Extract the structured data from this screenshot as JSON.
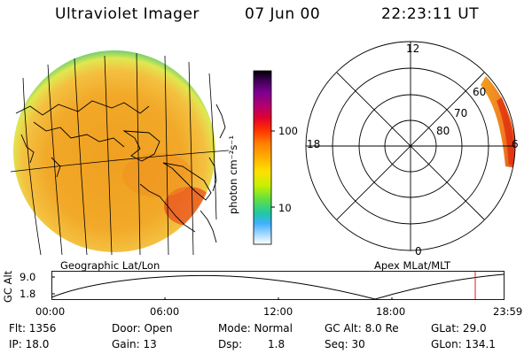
{
  "header": {
    "instrument": "Ultraviolet Imager",
    "date": "07 Jun 00",
    "time": "22:23:11 UT"
  },
  "colorbar": {
    "unit_label": "photon cm⁻²s⁻¹",
    "scale": "log",
    "tick_labels": [
      "100",
      "10"
    ],
    "colors": [
      "#000000",
      "#3a0050",
      "#7a0090",
      "#b00070",
      "#e00030",
      "#ff3000",
      "#ff8000",
      "#ffb000",
      "#ffe000",
      "#c8f000",
      "#60e040",
      "#20c8a0",
      "#40b0ff",
      "#a0d8ff",
      "#ffffff"
    ]
  },
  "geo_panel": {
    "label": "Geographic Lat/Lon",
    "colors": {
      "base": "#f2a020",
      "edge": "#e0e850",
      "rim": "#70d070",
      "hot": "#e85020"
    }
  },
  "polar_panel": {
    "label": "Apex MLat/MLT",
    "mlt_labels": {
      "top": "12",
      "left": "18",
      "bottom": "0",
      "right": "6"
    },
    "mlat_labels": [
      "60",
      "70",
      "80"
    ],
    "colors": {
      "aurora": "#f2a020",
      "aurora_hot": "#e03010"
    }
  },
  "orbit": {
    "y_axis_label": "GC Alt",
    "y_ticks": [
      "9.0",
      "1.8"
    ],
    "x_ticks": [
      "00:00",
      "06:00",
      "12:00",
      "18:00",
      "23:59"
    ],
    "current_marker_color": "#d02020"
  },
  "status": {
    "flt": "Flt: 1356",
    "ip": "IP: 18.0",
    "door": "Door: Open",
    "gain": "Gain: 13",
    "mode": "Mode: Normal",
    "dsp_label": "Dsp:",
    "dsp_value": "1.8",
    "gc_alt": "GC Alt: 8.0 Re",
    "seq": "Seq: 30",
    "glat": "GLat:  29.0",
    "glon": "GLon: 134.1"
  }
}
